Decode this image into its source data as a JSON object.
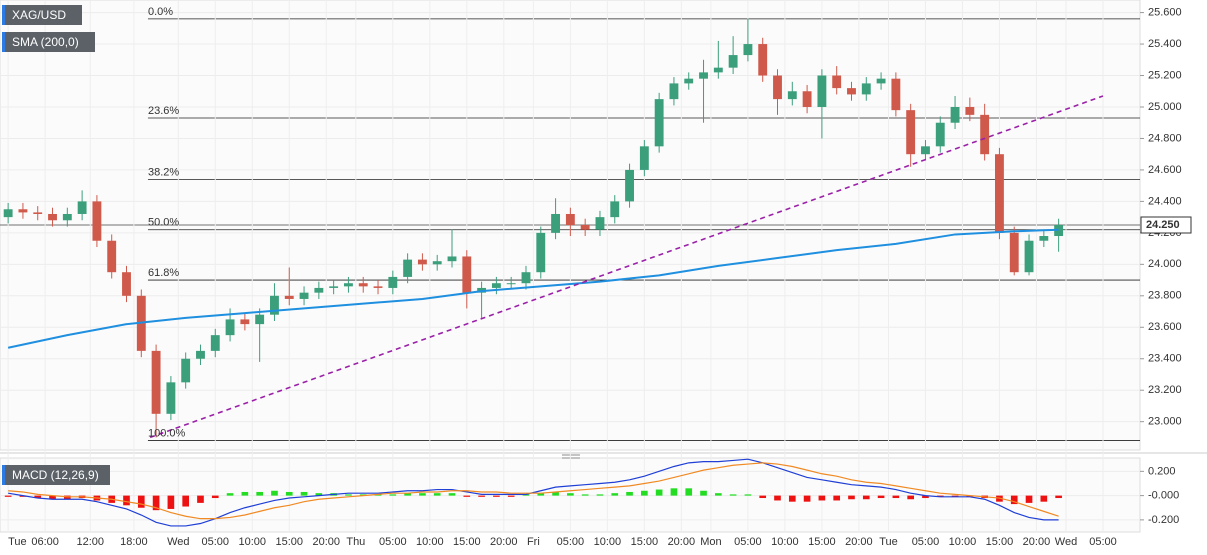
{
  "chart_data": [
    {
      "type": "candlestick",
      "title": "XAG/USD",
      "up_color": "#3c9f7c",
      "down_color": "#cf5a4c",
      "xlim": [
        -1.1,
        153
      ],
      "ylim": [
        22.82,
        25.68
      ],
      "yticks": [
        {
          "value": 23.0,
          "label": "23.000"
        },
        {
          "value": 23.2,
          "label": "23.200"
        },
        {
          "value": 23.4,
          "label": "23.400"
        },
        {
          "value": 23.6,
          "label": "23.600"
        },
        {
          "value": 23.8,
          "label": "23.800"
        },
        {
          "value": 24.0,
          "label": "24.000"
        },
        {
          "value": 24.2,
          "label": "24.200"
        },
        {
          "value": 24.4,
          "label": "24.400"
        },
        {
          "value": 24.6,
          "label": "24.600"
        },
        {
          "value": 24.8,
          "label": "24.800"
        },
        {
          "value": 25.0,
          "label": "25.000"
        },
        {
          "value": 25.2,
          "label": "25.200"
        },
        {
          "value": 25.4,
          "label": "25.400"
        },
        {
          "value": 25.6,
          "label": "25.600"
        }
      ],
      "x": [
        0,
        2,
        4,
        6,
        8,
        10,
        12,
        14,
        16,
        18,
        20,
        22,
        24,
        26,
        28,
        30,
        32,
        34,
        36,
        38,
        40,
        42,
        44,
        46,
        48,
        50,
        52,
        54,
        56,
        58,
        60,
        62,
        64,
        66,
        68,
        70,
        72,
        74,
        76,
        78,
        80,
        82,
        84,
        86,
        88,
        90,
        92,
        94,
        96,
        98,
        100,
        102,
        104,
        106,
        108,
        110,
        112,
        114,
        116,
        118,
        120,
        122,
        124,
        126,
        128,
        130,
        132,
        134,
        136,
        138,
        140,
        142
      ],
      "open": [
        24.3,
        24.35,
        24.33,
        24.32,
        24.28,
        24.32,
        24.4,
        24.15,
        23.95,
        23.8,
        23.45,
        23.05,
        23.25,
        23.4,
        23.45,
        23.55,
        23.65,
        23.62,
        23.68,
        23.8,
        23.78,
        23.82,
        23.85,
        23.86,
        23.88,
        23.86,
        23.85,
        23.92,
        24.03,
        24.0,
        24.02,
        24.05,
        23.82,
        23.85,
        23.88,
        23.88,
        23.95,
        24.2,
        24.32,
        24.25,
        24.22,
        24.3,
        24.4,
        24.6,
        24.75,
        25.05,
        25.15,
        25.18,
        25.22,
        25.25,
        25.33,
        25.4,
        25.2,
        25.05,
        25.1,
        25.0,
        25.2,
        25.12,
        25.08,
        25.15,
        25.18,
        24.98,
        24.7,
        24.75,
        24.9,
        25.0,
        24.95,
        24.7,
        24.2,
        23.95,
        24.15,
        24.18
      ],
      "high": [
        24.39,
        24.39,
        24.37,
        24.36,
        24.36,
        24.47,
        24.44,
        24.19,
        23.99,
        23.84,
        23.49,
        23.29,
        23.44,
        23.49,
        23.59,
        23.72,
        23.69,
        23.72,
        23.88,
        23.98,
        23.86,
        23.89,
        23.9,
        23.92,
        23.92,
        23.9,
        23.96,
        24.07,
        24.07,
        24.06,
        24.22,
        24.09,
        23.89,
        23.92,
        23.92,
        23.99,
        24.24,
        24.42,
        24.36,
        24.29,
        24.34,
        24.44,
        24.64,
        24.79,
        25.09,
        25.19,
        25.22,
        25.3,
        25.42,
        25.45,
        25.56,
        25.44,
        25.24,
        25.16,
        25.14,
        25.24,
        25.26,
        25.16,
        25.19,
        25.22,
        25.22,
        25.02,
        24.79,
        24.94,
        25.07,
        25.06,
        25.02,
        24.74,
        24.24,
        24.19,
        24.22,
        24.29
      ],
      "low": [
        24.26,
        24.29,
        24.28,
        24.24,
        24.24,
        24.28,
        24.11,
        23.91,
        23.76,
        23.41,
        22.9,
        23.01,
        23.21,
        23.36,
        23.41,
        23.51,
        23.58,
        23.38,
        23.64,
        23.74,
        23.74,
        23.78,
        23.81,
        23.82,
        23.82,
        23.81,
        23.81,
        23.88,
        23.96,
        23.96,
        23.98,
        23.72,
        23.65,
        23.81,
        23.84,
        23.84,
        23.91,
        24.16,
        24.18,
        24.18,
        24.18,
        24.26,
        24.36,
        24.56,
        24.71,
        25.01,
        25.11,
        24.9,
        25.18,
        25.21,
        25.29,
        25.16,
        24.95,
        25.01,
        24.96,
        24.8,
        25.08,
        25.04,
        25.04,
        25.11,
        24.94,
        24.62,
        24.66,
        24.71,
        24.86,
        24.91,
        24.66,
        24.16,
        23.93,
        23.93,
        24.11,
        24.08
      ],
      "close": [
        24.35,
        24.33,
        24.32,
        24.28,
        24.32,
        24.4,
        24.15,
        23.95,
        23.8,
        23.45,
        23.05,
        23.25,
        23.4,
        23.45,
        23.55,
        23.65,
        23.62,
        23.68,
        23.8,
        23.78,
        23.82,
        23.85,
        23.86,
        23.88,
        23.86,
        23.85,
        23.92,
        24.03,
        24.0,
        24.02,
        24.05,
        23.82,
        23.85,
        23.88,
        23.88,
        23.95,
        24.2,
        24.32,
        24.25,
        24.22,
        24.3,
        24.4,
        24.6,
        24.75,
        25.05,
        25.15,
        25.18,
        25.22,
        25.25,
        25.33,
        25.4,
        25.2,
        25.05,
        25.1,
        25.0,
        25.2,
        25.12,
        25.08,
        25.15,
        25.18,
        24.98,
        24.7,
        24.75,
        24.9,
        25.0,
        24.95,
        24.7,
        24.2,
        23.95,
        24.15,
        24.18,
        24.25
      ],
      "series": [
        {
          "name": "SMA (200,0)",
          "color": "#1f8fe0",
          "x": [
            0,
            8,
            16,
            24,
            32,
            40,
            48,
            56,
            64,
            72,
            80,
            88,
            96,
            104,
            112,
            120,
            128,
            136,
            142
          ],
          "values": [
            23.47,
            23.55,
            23.62,
            23.66,
            23.69,
            23.72,
            23.75,
            23.78,
            23.83,
            23.86,
            23.89,
            23.93,
            23.99,
            24.04,
            24.09,
            24.13,
            24.19,
            24.21,
            24.22
          ]
        }
      ],
      "trendline": {
        "color": "#9b20a8",
        "x": [
          19.2,
          148
        ],
        "values": [
          22.9,
          25.07
        ]
      },
      "fibonacci": {
        "start_x": 18.9,
        "color": "#222222",
        "levels": [
          {
            "label": "0.0%",
            "value": 25.56
          },
          {
            "label": "23.6%",
            "value": 24.93
          },
          {
            "label": "38.2%",
            "value": 24.54
          },
          {
            "label": "50.0%",
            "value": 24.22
          },
          {
            "label": "61.8%",
            "value": 23.9
          },
          {
            "label": "100.0%",
            "value": 22.88
          }
        ]
      },
      "last_price": {
        "value": 24.25,
        "label": "24.250"
      }
    },
    {
      "type": "macd",
      "title": "MACD (12,26,9)",
      "xlim": [
        -1.1,
        153
      ],
      "ylim": [
        -0.3,
        0.31
      ],
      "yticks": [
        {
          "value": 0.2,
          "label": "0.200"
        },
        {
          "value": 0,
          "label": "-0.000"
        },
        {
          "value": -0.2,
          "label": "-0.200"
        }
      ],
      "xticks": [
        {
          "value": 0,
          "label": "Tue"
        },
        {
          "value": 5,
          "label": "06:00"
        },
        {
          "value": 11.1,
          "label": "12:00"
        },
        {
          "value": 17,
          "label": "18:00"
        },
        {
          "value": 23,
          "label": "Wed"
        },
        {
          "value": 28,
          "label": "05:00"
        },
        {
          "value": 33,
          "label": "10:00"
        },
        {
          "value": 38,
          "label": "15:00"
        },
        {
          "value": 43,
          "label": "20:00"
        },
        {
          "value": 47,
          "label": "Thu"
        },
        {
          "value": 52,
          "label": "05:00"
        },
        {
          "value": 57,
          "label": "10:00"
        },
        {
          "value": 62,
          "label": "15:00"
        },
        {
          "value": 67,
          "label": "20:00"
        },
        {
          "value": 71,
          "label": "Fri"
        },
        {
          "value": 76,
          "label": "05:00"
        },
        {
          "value": 81,
          "label": "10:00"
        },
        {
          "value": 86,
          "label": "15:00"
        },
        {
          "value": 91,
          "label": "20:00"
        },
        {
          "value": 95,
          "label": "Mon"
        },
        {
          "value": 100,
          "label": "05:00"
        },
        {
          "value": 105,
          "label": "10:00"
        },
        {
          "value": 110,
          "label": "15:00"
        },
        {
          "value": 115,
          "label": "20:00"
        },
        {
          "value": 119,
          "label": "Tue"
        },
        {
          "value": 124,
          "label": "05:00"
        },
        {
          "value": 129,
          "label": "10:00"
        },
        {
          "value": 134,
          "label": "15:00"
        },
        {
          "value": 139,
          "label": "20:00"
        },
        {
          "value": 143,
          "label": "Wed"
        },
        {
          "value": 148,
          "label": "05:00"
        }
      ],
      "x": [
        0,
        2,
        4,
        6,
        8,
        10,
        12,
        14,
        16,
        18,
        20,
        22,
        24,
        26,
        28,
        30,
        32,
        34,
        36,
        38,
        40,
        42,
        44,
        46,
        48,
        50,
        52,
        54,
        56,
        58,
        60,
        62,
        64,
        66,
        68,
        70,
        72,
        74,
        76,
        78,
        80,
        82,
        84,
        86,
        88,
        90,
        92,
        94,
        96,
        98,
        100,
        102,
        104,
        106,
        108,
        110,
        112,
        114,
        116,
        118,
        120,
        122,
        124,
        126,
        128,
        130,
        132,
        134,
        136,
        138,
        140,
        142
      ],
      "histogram": {
        "up_color": "#22dd22",
        "down_color": "#ee1111",
        "values": [
          -0.01,
          -0.01,
          -0.02,
          -0.03,
          -0.03,
          -0.02,
          -0.04,
          -0.06,
          -0.08,
          -0.1,
          -0.12,
          -0.11,
          -0.09,
          -0.06,
          -0.02,
          0.02,
          0.03,
          0.03,
          0.04,
          0.03,
          0.03,
          0.02,
          0.02,
          0.01,
          0.01,
          0.01,
          0.01,
          0.02,
          0.02,
          0.02,
          0.02,
          -0.01,
          -0.01,
          -0.01,
          -0.01,
          0.01,
          0.02,
          0.03,
          0.02,
          0.01,
          0.01,
          0.02,
          0.03,
          0.04,
          0.05,
          0.06,
          0.06,
          0.04,
          0.02,
          0.01,
          0.01,
          -0.02,
          -0.04,
          -0.05,
          -0.05,
          -0.04,
          -0.04,
          -0.03,
          -0.03,
          -0.02,
          -0.02,
          -0.03,
          -0.02,
          -0.01,
          -0.01,
          -0.01,
          -0.02,
          -0.05,
          -0.07,
          -0.06,
          -0.05,
          -0.02
        ]
      },
      "series": [
        {
          "color": "#1f3fd6",
          "values": [
            0.02,
            0.0,
            -0.02,
            -0.03,
            -0.03,
            -0.03,
            -0.05,
            -0.08,
            -0.11,
            -0.16,
            -0.22,
            -0.25,
            -0.25,
            -0.23,
            -0.19,
            -0.14,
            -0.1,
            -0.07,
            -0.04,
            -0.02,
            -0.01,
            0.0,
            0.01,
            0.02,
            0.02,
            0.02,
            0.03,
            0.04,
            0.04,
            0.05,
            0.05,
            0.03,
            0.01,
            0.01,
            0.01,
            0.01,
            0.04,
            0.07,
            0.08,
            0.09,
            0.1,
            0.11,
            0.13,
            0.16,
            0.2,
            0.24,
            0.27,
            0.28,
            0.28,
            0.29,
            0.3,
            0.27,
            0.23,
            0.19,
            0.15,
            0.13,
            0.11,
            0.09,
            0.08,
            0.07,
            0.05,
            0.02,
            0.0,
            -0.01,
            -0.01,
            -0.01,
            -0.03,
            -0.08,
            -0.14,
            -0.18,
            -0.2,
            -0.2
          ]
        },
        {
          "color": "#f08a24",
          "values": [
            0.04,
            0.03,
            0.01,
            0.0,
            -0.01,
            -0.01,
            -0.02,
            -0.03,
            -0.05,
            -0.07,
            -0.1,
            -0.14,
            -0.17,
            -0.19,
            -0.19,
            -0.18,
            -0.16,
            -0.13,
            -0.1,
            -0.08,
            -0.05,
            -0.03,
            -0.02,
            -0.01,
            0.0,
            0.01,
            0.02,
            0.02,
            0.03,
            0.03,
            0.04,
            0.04,
            0.03,
            0.03,
            0.02,
            0.02,
            0.02,
            0.03,
            0.04,
            0.05,
            0.06,
            0.07,
            0.08,
            0.1,
            0.12,
            0.15,
            0.18,
            0.21,
            0.23,
            0.25,
            0.26,
            0.27,
            0.26,
            0.24,
            0.21,
            0.18,
            0.16,
            0.13,
            0.11,
            0.1,
            0.08,
            0.06,
            0.04,
            0.02,
            0.01,
            0.0,
            -0.01,
            -0.02,
            -0.05,
            -0.09,
            -0.13,
            -0.17
          ]
        }
      ]
    }
  ]
}
